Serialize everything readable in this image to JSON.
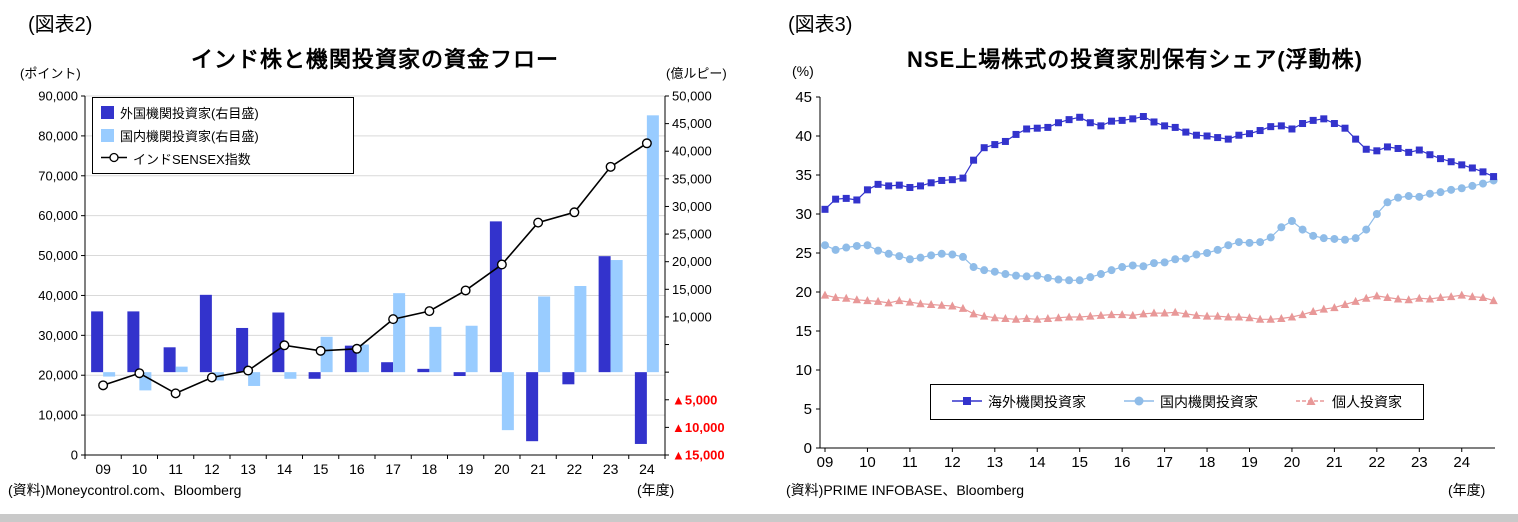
{
  "figure2": {
    "label": "(図表2)",
    "title": "インド株と機関投資家の資金フロー",
    "unit_left": "(ポイント)",
    "unit_right": "(億ルピー)",
    "unit_x": "(年度)",
    "source": "(資料)Moneycontrol.com、Bloomberg",
    "legend": {
      "foreign": "外国機関投資家(右目盛)",
      "domestic": "国内機関投資家(右目盛)",
      "sensex": "インドSENSEX指数"
    },
    "colors": {
      "foreign": "#3333cc",
      "domestic": "#99ccff",
      "sensex": "#000000",
      "negative_label": "#ff0000",
      "gridline": "#d9d9d9"
    },
    "chart_data": {
      "type": "bar",
      "categories": [
        "09",
        "10",
        "11",
        "12",
        "13",
        "14",
        "15",
        "16",
        "17",
        "18",
        "19",
        "20",
        "21",
        "22",
        "23",
        "24"
      ],
      "series": [
        {
          "name": "外国機関投資家(右目盛)",
          "type": "bar",
          "axis": "right",
          "values": [
            11000,
            11000,
            4500,
            14000,
            8000,
            10800,
            -1200,
            4800,
            1800,
            600,
            -700,
            27300,
            -12500,
            -2200,
            21000,
            -13000
          ]
        },
        {
          "name": "国内機関投資家(右目盛)",
          "type": "bar",
          "axis": "right",
          "values": [
            -800,
            -3300,
            1000,
            -1500,
            -2500,
            -1200,
            6400,
            5000,
            14300,
            8200,
            8400,
            -10500,
            13700,
            15600,
            20300,
            46500
          ]
        },
        {
          "name": "インドSENSEX指数",
          "type": "line",
          "axis": "left",
          "values": [
            17465,
            20509,
            15455,
            19427,
            21171,
            27499,
            26118,
            26626,
            34057,
            36068,
            41254,
            47751,
            58254,
            60841,
            72240,
            78139
          ]
        }
      ],
      "left_axis": {
        "label": "(ポイント)",
        "min": 0,
        "max": 90000,
        "step": 10000
      },
      "right_axis": {
        "label": "(億ルピー)",
        "min": -15000,
        "max": 50000,
        "step": 5000,
        "unlabeled": [
          0,
          5000
        ],
        "negative_prefix": "▲"
      },
      "xlabel": "(年度)",
      "grid": "horizontal"
    }
  },
  "figure3": {
    "label": "(図表3)",
    "title": "NSE上場株式の投資家別保有シェア(浮動株)",
    "unit_y": "(%)",
    "unit_x": "(年度)",
    "source": "(資料)PRIME INFOBASE、Bloomberg",
    "legend": {
      "foreign": "海外機関投資家",
      "domestic": "国内機関投資家",
      "individual": "個人投資家"
    },
    "colors": {
      "foreign": "#3333cc",
      "domestic": "#8fbce8",
      "individual": "#e89898"
    },
    "chart_data": {
      "type": "line",
      "x_tick_labels": [
        "09",
        "10",
        "11",
        "12",
        "13",
        "14",
        "15",
        "16",
        "17",
        "18",
        "19",
        "20",
        "21",
        "22",
        "23",
        "24"
      ],
      "x_start_year": 2009,
      "x_step_years": 0.25,
      "y_axis": {
        "label": "(%)",
        "min": 0,
        "max": 45,
        "step": 5
      },
      "xlabel": "(年度)",
      "grid": "off",
      "legend_position": "bottom-inside",
      "series": [
        {
          "name": "海外機関投資家",
          "marker": "square",
          "values": [
            30.6,
            31.9,
            32.0,
            31.8,
            33.1,
            33.8,
            33.6,
            33.7,
            33.4,
            33.6,
            34.0,
            34.3,
            34.4,
            34.6,
            36.9,
            38.5,
            38.9,
            39.3,
            40.2,
            40.9,
            41.0,
            41.1,
            41.7,
            42.1,
            42.4,
            41.7,
            41.3,
            41.9,
            42.0,
            42.2,
            42.5,
            41.8,
            41.3,
            41.1,
            40.5,
            40.1,
            40.0,
            39.8,
            39.6,
            40.1,
            40.3,
            40.7,
            41.2,
            41.3,
            40.9,
            41.6,
            42.0,
            42.2,
            41.6,
            41.0,
            39.6,
            38.3,
            38.1,
            38.6,
            38.4,
            37.9,
            38.2,
            37.6,
            37.1,
            36.7,
            36.3,
            35.9,
            35.4,
            34.8
          ]
        },
        {
          "name": "国内機関投資家",
          "marker": "circle",
          "values": [
            26.0,
            25.4,
            25.7,
            25.9,
            26.0,
            25.3,
            24.9,
            24.6,
            24.2,
            24.4,
            24.7,
            24.9,
            24.8,
            24.5,
            23.2,
            22.8,
            22.6,
            22.3,
            22.1,
            22.0,
            22.1,
            21.8,
            21.6,
            21.5,
            21.5,
            21.9,
            22.3,
            22.8,
            23.2,
            23.4,
            23.3,
            23.7,
            23.8,
            24.2,
            24.3,
            24.8,
            25.0,
            25.4,
            26.0,
            26.4,
            26.3,
            26.4,
            27.0,
            28.3,
            29.1,
            28.0,
            27.2,
            26.9,
            26.8,
            26.7,
            26.9,
            28.0,
            30.0,
            31.5,
            32.1,
            32.3,
            32.2,
            32.6,
            32.8,
            33.1,
            33.3,
            33.6,
            33.9,
            34.3
          ]
        },
        {
          "name": "個人投資家",
          "marker": "triangle",
          "values": [
            19.6,
            19.3,
            19.2,
            19.0,
            18.9,
            18.8,
            18.6,
            18.9,
            18.7,
            18.5,
            18.4,
            18.3,
            18.2,
            17.9,
            17.2,
            16.9,
            16.7,
            16.6,
            16.5,
            16.6,
            16.5,
            16.6,
            16.7,
            16.8,
            16.8,
            16.9,
            17.0,
            17.1,
            17.1,
            17.0,
            17.2,
            17.3,
            17.3,
            17.4,
            17.2,
            17.0,
            16.9,
            16.9,
            16.8,
            16.8,
            16.7,
            16.5,
            16.5,
            16.6,
            16.8,
            17.1,
            17.5,
            17.8,
            18.0,
            18.4,
            18.8,
            19.2,
            19.5,
            19.3,
            19.1,
            19.0,
            19.2,
            19.1,
            19.3,
            19.4,
            19.6,
            19.4,
            19.3,
            18.9
          ]
        }
      ]
    }
  }
}
